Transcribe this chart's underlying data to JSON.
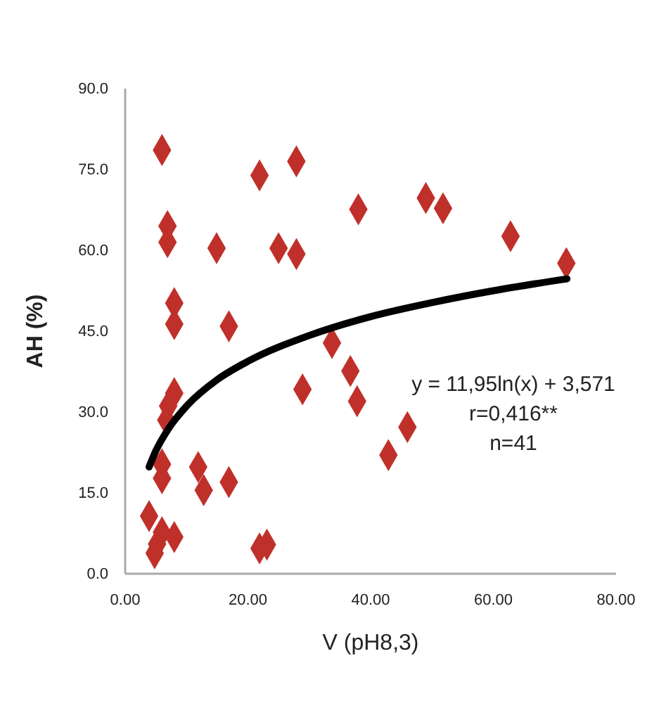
{
  "chart_data": {
    "type": "scatter",
    "xlabel": "V (pH8,3)",
    "ylabel": "AH (%)",
    "xlim": [
      0,
      80
    ],
    "xticks": [
      {
        "value": 0,
        "label": "0.00"
      },
      {
        "value": 20,
        "label": "20.00"
      },
      {
        "value": 40,
        "label": "40.00"
      },
      {
        "value": 60,
        "label": "60.00"
      },
      {
        "value": 80,
        "label": "80.00"
      }
    ],
    "ylim": [
      0,
      90
    ],
    "yticks": [
      {
        "value": 0,
        "label": "0.0"
      },
      {
        "value": 15,
        "label": "15.0"
      },
      {
        "value": 30,
        "label": "30.0"
      },
      {
        "value": 45,
        "label": "45.0"
      },
      {
        "value": 60,
        "label": "60.0"
      },
      {
        "value": 75,
        "label": "75.0"
      },
      {
        "value": 90,
        "label": "90.0"
      }
    ],
    "grid": false,
    "series": [
      {
        "marker": "diamond",
        "color": "#c0302a",
        "x": [
          6.0,
          21.9,
          27.9,
          6.9,
          6.9,
          14.9,
          25.0,
          27.9,
          8.0,
          8.0,
          16.9,
          33.7,
          36.7,
          37.8,
          28.9,
          8.0,
          7.0,
          6.7,
          6.0,
          6.0,
          11.9,
          12.8,
          16.9,
          3.9,
          6.0,
          8.0,
          4.8,
          5.2,
          21.9,
          23.1,
          38.0,
          49.0,
          51.8,
          62.8,
          71.9,
          46.0,
          42.9
        ],
        "values": [
          78.6,
          73.9,
          76.5,
          64.5,
          61.5,
          60.4,
          60.4,
          59.3,
          50.2,
          46.3,
          45.9,
          42.8,
          37.6,
          32.0,
          34.2,
          33.5,
          31.1,
          28.5,
          20.3,
          17.7,
          19.8,
          15.5,
          17.0,
          10.7,
          7.7,
          6.8,
          3.8,
          5.5,
          4.7,
          5.4,
          67.6,
          69.7,
          67.8,
          62.6,
          57.6,
          27.2,
          22.0
        ]
      },
      {
        "type": "line",
        "marker": "none",
        "line_style": "solid",
        "color": "#000000",
        "x": [
          3.9,
          5,
          7,
          10,
          15,
          20,
          30,
          40,
          50,
          60,
          72
        ],
        "values": [
          19.8,
          22.8,
          26.8,
          31.1,
          36.0,
          39.4,
          44.2,
          47.7,
          50.3,
          52.5,
          54.7
        ]
      }
    ],
    "annotations": [
      "y = 11,95ln(x) + 3,571",
      "r=0,416**",
      "n=41"
    ]
  }
}
